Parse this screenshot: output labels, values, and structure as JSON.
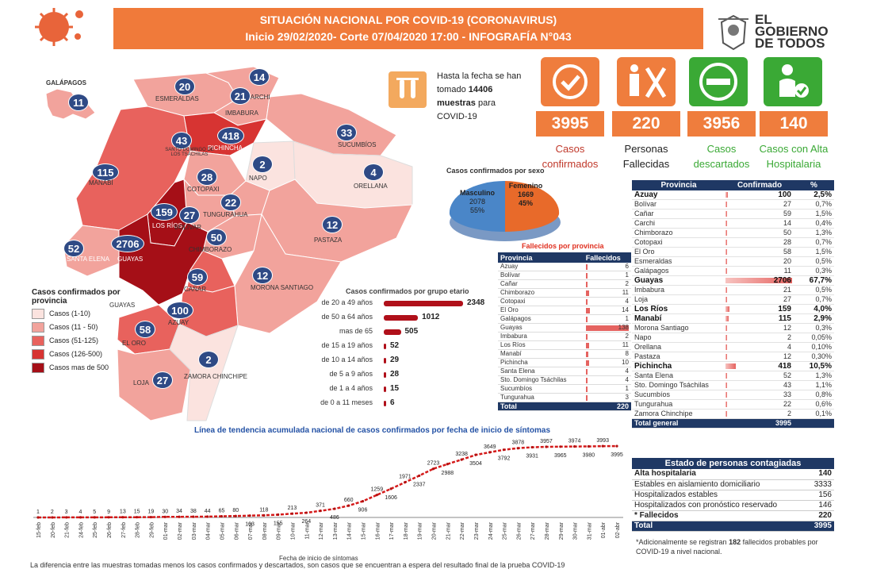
{
  "header": {
    "line1": "SITUACIÓN NACIONAL POR  COVID-19 (CORONAVIRUS)",
    "line2": "Inicio 29/02/2020- Corte 07/04/2020 17:00  - INFOGRAFÍA N°043"
  },
  "logo": {
    "line1": "EL",
    "line2": "GOBIERNO",
    "line3": "DE TODOS"
  },
  "samples": {
    "pre": "Hasta la fecha se han tomado",
    "count": "14406",
    "mid": "muestras",
    "post": "para COVID-19"
  },
  "stats": [
    {
      "value": "3995",
      "label1": "Casos",
      "label2": "confirmados",
      "color": "#c0392b"
    },
    {
      "value": "220",
      "label1": "Personas",
      "label2": "Fallecidas",
      "color": "#222222"
    },
    {
      "value": "3956",
      "label1": "Casos",
      "label2": "descartados",
      "color": "#3aa935"
    },
    {
      "value": "140",
      "label1": "Casos con Alta",
      "label2": "Hospitalaria",
      "color": "#3aa935"
    }
  ],
  "map": {
    "galapagos_label": "GALÁPAGOS",
    "provinces": [
      {
        "name": "GALÁPAGOS",
        "count": "11"
      },
      {
        "name": "ESMERALDAS",
        "count": "20"
      },
      {
        "name": "CARCHI",
        "count": "14"
      },
      {
        "name": "IMBABURA",
        "count": "21"
      },
      {
        "name": "PICHINCHA",
        "count": "418"
      },
      {
        "name": "SANTO DOMINGO DE LOS TSÁCHILAS",
        "count": "43"
      },
      {
        "name": "SUCUMBÍOS",
        "count": "33"
      },
      {
        "name": "MANABÍ",
        "count": "115"
      },
      {
        "name": "NAPO",
        "count": "2"
      },
      {
        "name": "COTOPAXI",
        "count": "28"
      },
      {
        "name": "ORELLANA",
        "count": "4"
      },
      {
        "name": "TUNGURAHUA",
        "count": "22"
      },
      {
        "name": "LOS RÍOS",
        "count": "159"
      },
      {
        "name": "BOLÍVAR",
        "count": "27"
      },
      {
        "name": "PASTAZA",
        "count": "12"
      },
      {
        "name": "SANTA ELENA",
        "count": "52"
      },
      {
        "name": "GUAYAS",
        "count": "2706"
      },
      {
        "name": "CHIMBORAZO",
        "count": "50"
      },
      {
        "name": "CAÑAR",
        "count": "59"
      },
      {
        "name": "MORONA SANTIAGO",
        "count": "12"
      },
      {
        "name": "AZUAY",
        "count": "100"
      },
      {
        "name": "EL ORO",
        "count": "58"
      },
      {
        "name": "ZAMORA CHINCHIPE",
        "count": "2"
      },
      {
        "name": "LOJA",
        "count": "27"
      }
    ],
    "guayas_sub": "GUAYAS"
  },
  "legend": {
    "title": "Casos confirmados por provincia",
    "items": [
      {
        "label": "Casos (1-10)",
        "color": "#fbe3df"
      },
      {
        "label": "Casos (11 - 50)",
        "color": "#f2a39c"
      },
      {
        "label": "Casos (51-125)",
        "color": "#e8625d"
      },
      {
        "label": "Casos (126-500)",
        "color": "#d73432"
      },
      {
        "label": "Casos mas de 500",
        "color": "#a50f17"
      }
    ]
  },
  "sex": {
    "title": "Casos confirmados por sexo",
    "male_label": "Masculino",
    "male_count": "2078",
    "male_pct": "55%",
    "female_label": "Femenino",
    "female_count": "1669",
    "female_pct": "45%"
  },
  "age": {
    "title": "Casos confirmados por grupo etario",
    "groups": [
      {
        "label": "de 20 a 49 años",
        "value": 2348
      },
      {
        "label": "de 50 a 64 años",
        "value": 1012
      },
      {
        "label": "mas de 65",
        "value": 505
      },
      {
        "label": "de 15 a 19 años",
        "value": 52
      },
      {
        "label": "de 10 a 14 años",
        "value": 29
      },
      {
        "label": "de 5 a 9 años",
        "value": 28
      },
      {
        "label": "de 1 a 4 años",
        "value": 15
      },
      {
        "label": "de 0 a 11 meses",
        "value": 6
      }
    ]
  },
  "deaths": {
    "title": "Fallecidos por provincia",
    "col1": "Provincia",
    "col2": "Fallecidos",
    "rows": [
      {
        "p": "Azuay",
        "v": 6
      },
      {
        "p": "Bolívar",
        "v": 1
      },
      {
        "p": "Cañar",
        "v": 2
      },
      {
        "p": "Chimborazo",
        "v": 11
      },
      {
        "p": "Cotopaxi",
        "v": 4
      },
      {
        "p": "El Oro",
        "v": 14
      },
      {
        "p": "Galápagos",
        "v": 1
      },
      {
        "p": "Guayas",
        "v": 138
      },
      {
        "p": "Imbabura",
        "v": 2
      },
      {
        "p": "Los Ríos",
        "v": 11
      },
      {
        "p": "Manabí",
        "v": 8
      },
      {
        "p": "Pichincha",
        "v": 10
      },
      {
        "p": "Santa Elena",
        "v": 4
      },
      {
        "p": "Sto. Domingo Tsáchilas",
        "v": 4
      },
      {
        "p": "Sucumbíos",
        "v": 1
      },
      {
        "p": "Tungurahua",
        "v": 3
      }
    ],
    "total_label": "Total",
    "total": "220"
  },
  "confirmed_table": {
    "col1": "Provincia",
    "col2": "Confirmado",
    "col3": "%",
    "rows": [
      {
        "p": "Azuay",
        "v": 100,
        "pct": "2,5%",
        "bold": true
      },
      {
        "p": "Bolívar",
        "v": 27,
        "pct": "0,7%"
      },
      {
        "p": "Cañar",
        "v": 59,
        "pct": "1,5%"
      },
      {
        "p": "Carchi",
        "v": 14,
        "pct": "0,4%"
      },
      {
        "p": "Chimborazo",
        "v": 50,
        "pct": "1,3%"
      },
      {
        "p": "Cotopaxi",
        "v": 28,
        "pct": "0,7%"
      },
      {
        "p": "El Oro",
        "v": 58,
        "pct": "1,5%"
      },
      {
        "p": "Esmeraldas",
        "v": 20,
        "pct": "0,5%"
      },
      {
        "p": "Galápagos",
        "v": 11,
        "pct": "0,3%"
      },
      {
        "p": "Guayas",
        "v": 2706,
        "pct": "67,7%",
        "bold": true
      },
      {
        "p": "Imbabura",
        "v": 21,
        "pct": "0,5%"
      },
      {
        "p": "Loja",
        "v": 27,
        "pct": "0,7%"
      },
      {
        "p": "Los Ríos",
        "v": 159,
        "pct": "4,0%",
        "bold": true
      },
      {
        "p": "Manabí",
        "v": 115,
        "pct": "2,9%",
        "bold": true
      },
      {
        "p": "Morona Santiago",
        "v": 12,
        "pct": "0,3%"
      },
      {
        "p": "Napo",
        "v": 2,
        "pct": "0,05%"
      },
      {
        "p": "Orellana",
        "v": 4,
        "pct": "0,10%"
      },
      {
        "p": "Pastaza",
        "v": 12,
        "pct": "0,30%"
      },
      {
        "p": "Pichincha",
        "v": 418,
        "pct": "10,5%",
        "bold": true
      },
      {
        "p": "Santa Elena",
        "v": 52,
        "pct": "1,3%"
      },
      {
        "p": "Sto. Domingo Tsáchilas",
        "v": 43,
        "pct": "1,1%"
      },
      {
        "p": "Sucumbíos",
        "v": 33,
        "pct": "0,8%"
      },
      {
        "p": "Tungurahua",
        "v": 22,
        "pct": "0,6%"
      },
      {
        "p": "Zamora Chinchipe",
        "v": 2,
        "pct": "0,1%"
      }
    ],
    "total_label": "Total general",
    "total": "3995"
  },
  "status_table": {
    "title": "Estado de personas contagiadas",
    "rows": [
      {
        "label": "Alta hospitalaria",
        "v": "140",
        "b": true
      },
      {
        "label": "Estables en aislamiento domiciliario",
        "v": "3333"
      },
      {
        "label": "Hospitalizados estables",
        "v": "156"
      },
      {
        "label": "Hospitalizados con pronóstico reservado",
        "v": "146"
      },
      {
        "label": "*  Fallecidos",
        "v": "220",
        "b": true
      }
    ],
    "total_label": "Total",
    "total": "3995"
  },
  "footnote": {
    "pre": "*Adicionalmente se registran",
    "num": "182",
    "post": "fallecidos probables por COVID-19 a nivel nacional."
  },
  "chart_data": {
    "type": "line",
    "title": "Línea de tendencia acumulada nacional de casos confirmados por fecha de inicio de síntomas",
    "xlabel": "Fecha de inicio de síntomas",
    "ylabel": "",
    "x": [
      "15-feb",
      "20-feb",
      "21-feb",
      "24-feb",
      "25-feb",
      "26-feb",
      "27-feb",
      "28-feb",
      "29-feb",
      "01-mar",
      "02-mar",
      "03-mar",
      "04-mar",
      "05-mar",
      "06-mar",
      "07-mar",
      "08-mar",
      "09-mar",
      "10-mar",
      "11-mar",
      "12-mar",
      "13-mar",
      "14-mar",
      "15-mar",
      "16-mar",
      "17-mar",
      "18-mar",
      "19-mar",
      "20-mar",
      "21-mar",
      "22-mar",
      "23-mar",
      "24-mar",
      "25-mar",
      "26-mar",
      "27-mar",
      "28-mar",
      "29-mar",
      "30-mar",
      "31-mar",
      "01-abr",
      "02-abr"
    ],
    "series": [
      {
        "values": [
          1,
          2,
          3,
          4,
          5,
          9,
          13,
          15,
          19,
          30,
          34,
          38,
          44,
          65,
          80,
          103,
          118,
          155,
          213,
          264,
          371,
          486,
          660,
          906,
          1259,
          1606,
          1971,
          2337,
          2723,
          2988,
          3238,
          3504,
          3649,
          3792,
          3878,
          3931,
          3957,
          3965,
          3974,
          3980,
          3993,
          3995
        ]
      }
    ],
    "ylim": [
      0,
      4000
    ],
    "grid": false
  },
  "bottom_note": "La diferencia entre las muestras tomadas menos los casos confirmados y descartados, son casos que se encuentran a espera del resultado final de la prueba COVID-19"
}
